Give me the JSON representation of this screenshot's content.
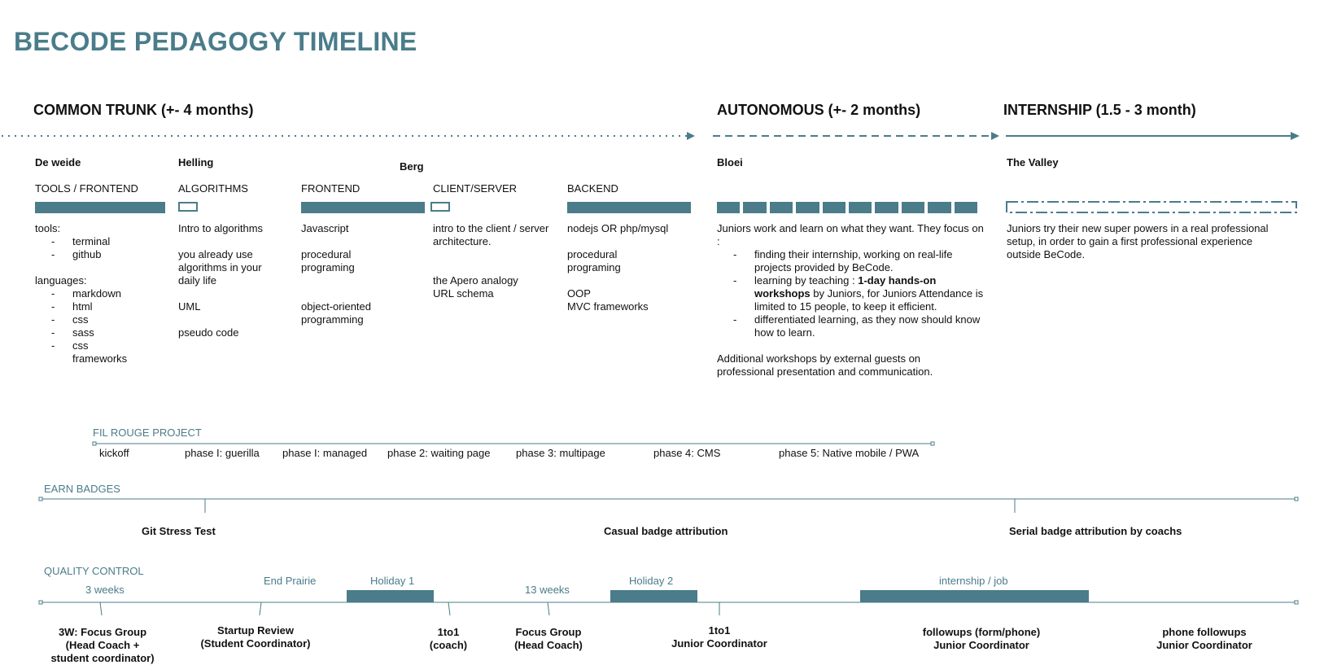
{
  "title": "BECODE PEDAGOGY TIMELINE",
  "colors": {
    "accent": "#4a7c8a",
    "text": "#111111"
  },
  "phases": {
    "common": "COMMON TRUNK (+- 4 months)",
    "autonomous": "AUTONOMOUS (+- 2 months)",
    "internship": "INTERNSHIP (1.5 - 3 month)"
  },
  "stages": {
    "de_weide": "De weide",
    "helling": "Helling",
    "berg": "Berg",
    "bloei": "Bloei",
    "valley": "The Valley"
  },
  "categories": {
    "tools_frontend": "TOOLS / FRONTEND",
    "algorithms": "ALGORITHMS",
    "frontend": "FRONTEND",
    "client_server": "CLIENT/SERVER",
    "backend": "BACKEND"
  },
  "col1": {
    "tools_label": "tools:",
    "tools": [
      "terminal",
      "github"
    ],
    "languages_label": "languages:",
    "languages": [
      "markdown",
      "html",
      "css",
      "sass",
      "css frameworks"
    ]
  },
  "col2": [
    "Intro to algorithms",
    "you already use algorithms in your daily life",
    "UML",
    "pseudo code"
  ],
  "col3": [
    "Javascript",
    "procedural programing",
    "object-oriented programming"
  ],
  "col4": [
    "intro to the client / server architecture.",
    "the Apero analogy",
    "URL schema"
  ],
  "col5": [
    "nodejs OR php/mysql",
    "procedural programing",
    "OOP",
    "MVC frameworks"
  ],
  "bloei": {
    "intro": "Juniors work and learn on what they want. They focus on :",
    "items": [
      "finding their internship, working on real-life projects provided by BeCode.",
      "learning by teaching :",
      "differentiated learning, as they now should know how to learn."
    ],
    "item2_bold": "1-day hands-on workshops",
    "item2_rest": "by Juniors, for Juniors Attendance is limited to 15 people, to keep it efficient.",
    "additional": "Additional workshops by external guests on professional presentation and communication."
  },
  "valley": {
    "text": "Juniors try their new super powers in a real professional setup, in order to gain a first professional experience outside BeCode."
  },
  "fil_rouge": {
    "label": "FIL ROUGE PROJECT",
    "phases": [
      "kickoff",
      "phase I: guerilla",
      "phase I: managed",
      "phase 2: waiting page",
      "phase 3: multipage",
      "phase 4: CMS",
      "phase 5: Native mobile / PWA"
    ]
  },
  "badges": {
    "label": "EARN BADGES",
    "git": "Git Stress Test",
    "casual": "Casual badge attribution",
    "serial": "Serial badge attribution by coachs"
  },
  "quality": {
    "label": "QUALITY CONTROL",
    "three_weeks": "3 weeks",
    "end_prairie": "End Prairie",
    "holiday1": "Holiday 1",
    "thirteen_weeks": "13 weeks",
    "holiday2": "Holiday 2",
    "internship_job": "internship / job",
    "events": {
      "focus3w": [
        "3W: Focus Group",
        "(Head Coach +",
        "student coordinator)"
      ],
      "startup": [
        "Startup Review",
        "(Student Coordinator)"
      ],
      "oneto1coach": [
        "1to1",
        "(coach)"
      ],
      "focus": [
        "Focus Group",
        "(Head Coach)"
      ],
      "oneto1junior": [
        "1to1",
        "Junior Coordinator"
      ],
      "followups": [
        "followups (form/phone)",
        "Junior Coordinator"
      ],
      "phone": [
        "phone followups",
        "Junior Coordinator"
      ]
    }
  }
}
